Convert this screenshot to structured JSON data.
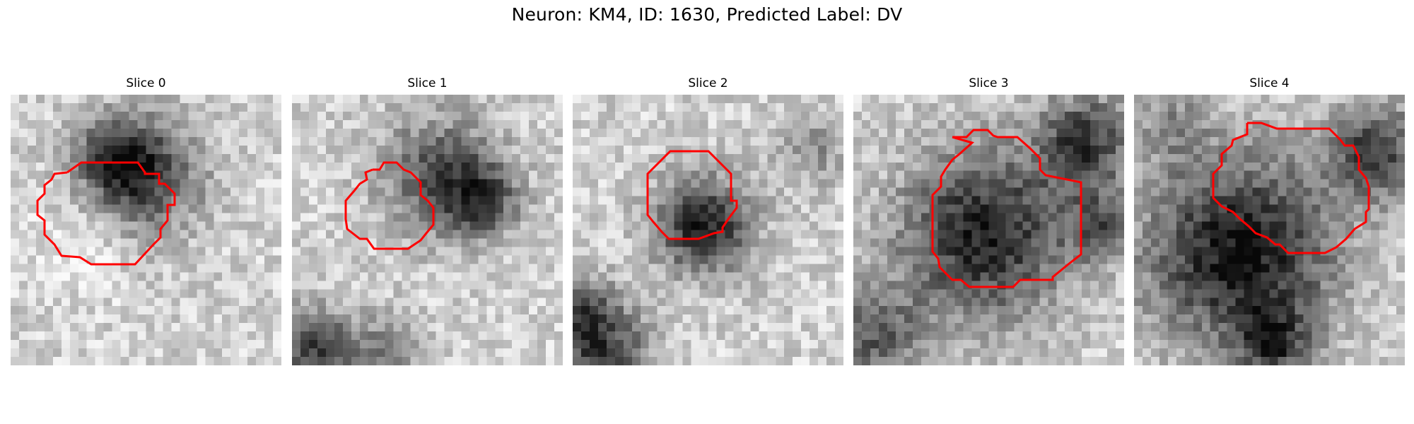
{
  "figure": {
    "title": "Neuron: KM4, ID: 1630, Predicted Label: DV"
  },
  "panels": [
    {
      "title": "Slice 0",
      "image": "grayscale-microscopy-slice",
      "contour_color": "#ff0000"
    },
    {
      "title": "Slice 1",
      "image": "grayscale-microscopy-slice",
      "contour_color": "#ff0000"
    },
    {
      "title": "Slice 2",
      "image": "grayscale-microscopy-slice",
      "contour_color": "#ff0000"
    },
    {
      "title": "Slice 3",
      "image": "grayscale-microscopy-slice",
      "contour_color": "#ff0000"
    },
    {
      "title": "Slice 4",
      "image": "grayscale-microscopy-slice",
      "contour_color": "#ff0000"
    }
  ],
  "colors": {
    "background": "#ffffff",
    "contour": "#ff0000"
  }
}
